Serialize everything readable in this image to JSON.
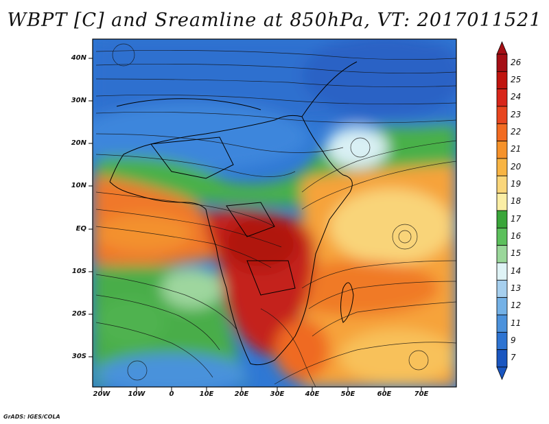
{
  "title": "WBPT [C] and Sreamline at 850hPa, VT: 2017011521",
  "credit": "GrADS: IGES/COLA",
  "map": {
    "lat_labels": [
      "40N",
      "30N",
      "20N",
      "10N",
      "EQ",
      "10S",
      "20S",
      "30S"
    ],
    "lon_labels": [
      "20W",
      "10W",
      "0",
      "10E",
      "20E",
      "30E",
      "40E",
      "50E",
      "60E",
      "70E"
    ]
  },
  "colorbar": {
    "labels": [
      "26",
      "25",
      "24",
      "23",
      "22",
      "21",
      "20",
      "19",
      "18",
      "17",
      "16",
      "15",
      "14",
      "13",
      "12",
      "11",
      "9",
      "7"
    ],
    "colors": [
      "#a50f15",
      "#c0140f",
      "#d8261a",
      "#e8461f",
      "#f26b21",
      "#f6922a",
      "#f8b443",
      "#fad67a",
      "#fbeea5",
      "#3aa63a",
      "#5cc05c",
      "#9ad79a",
      "#dff3f6",
      "#a6cfee",
      "#74b1e6",
      "#4c92dc",
      "#2e74d2",
      "#1a56c0"
    ]
  }
}
